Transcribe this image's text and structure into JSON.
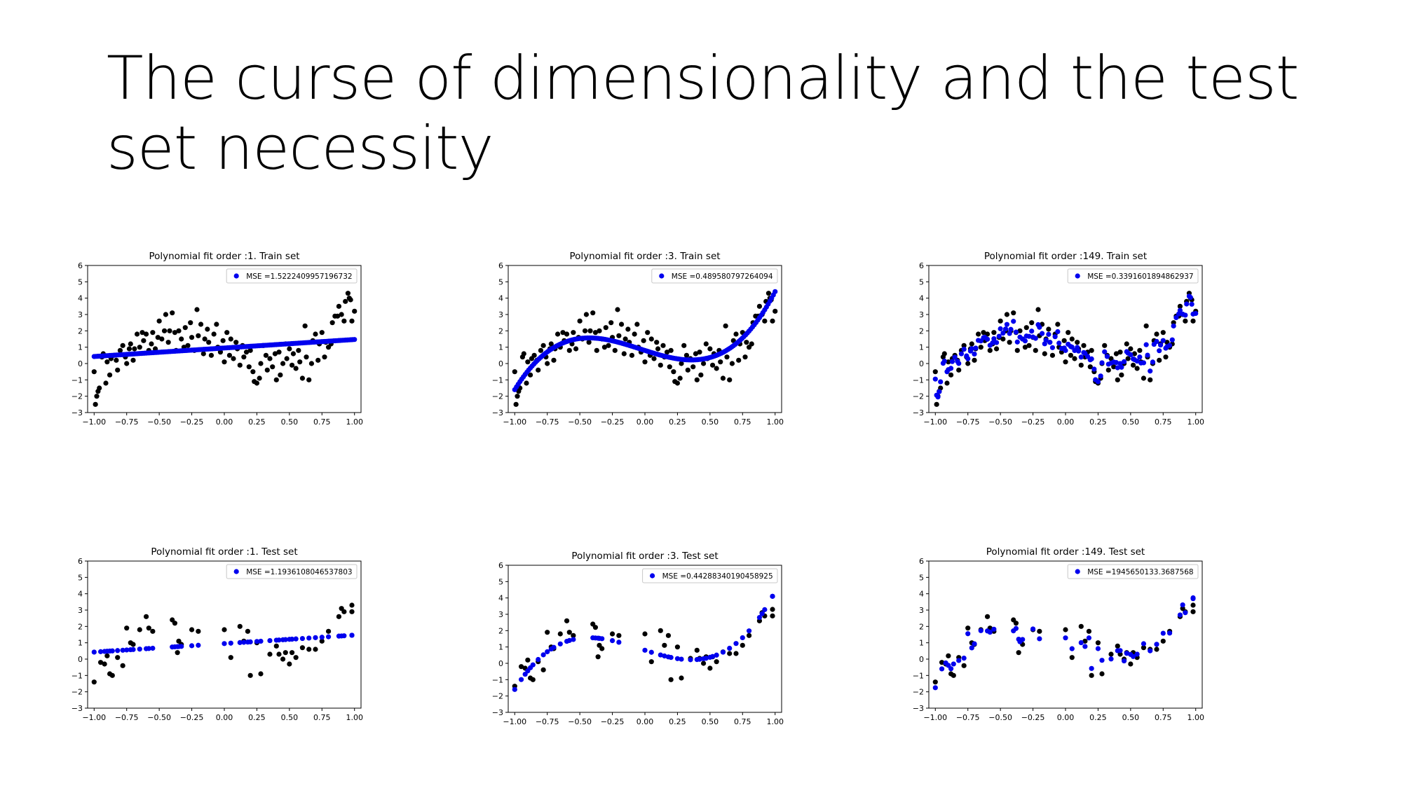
{
  "slide": {
    "title": "The curse of dimensionality and the test set necessity"
  },
  "chart_data": [
    {
      "type": "scatter",
      "title": "Polynomial fit order :1. Train set",
      "legend": "MSE =1.5222409957196732",
      "legend_position": "upper-right",
      "xlim": [
        -1.05,
        1.05
      ],
      "ylim": [
        -3,
        6
      ],
      "xticks": [
        "−1.00",
        "−0.75",
        "−0.50",
        "−0.25",
        "0.00",
        "0.25",
        "0.50",
        "0.75",
        "1.00"
      ],
      "yticks": [
        "−3",
        "−2",
        "−1",
        "0",
        "1",
        "2",
        "3",
        "4",
        "5",
        "6"
      ],
      "data_series": {
        "name": "data",
        "color": "#000000",
        "points": "train"
      },
      "fit_series": {
        "color": "#0000ee",
        "dense": true,
        "model": {
          "order": 1,
          "coefficients": [
            0.95,
            0.52
          ]
        }
      }
    },
    {
      "type": "scatter",
      "title": "Polynomial fit order :3. Train set",
      "legend": "MSE =0.489580797264094",
      "legend_position": "upper-right",
      "xlim": [
        -1.05,
        1.05
      ],
      "ylim": [
        -3,
        6
      ],
      "xticks": [
        "−1.00",
        "−0.75",
        "−0.50",
        "−0.25",
        "0.00",
        "0.25",
        "0.50",
        "0.75",
        "1.00"
      ],
      "yticks": [
        "−3",
        "−2",
        "−1",
        "0",
        "1",
        "2",
        "3",
        "4",
        "5",
        "6"
      ],
      "data_series": {
        "name": "data",
        "color": "#000000",
        "points": "train"
      },
      "fit_series": {
        "color": "#0000ee",
        "dense": true,
        "model": {
          "order": 3,
          "coefficients": [
            0.8,
            -2.55,
            0.6,
            5.55
          ]
        }
      }
    },
    {
      "type": "scatter",
      "title": "Polynomial fit order :149. Train set",
      "legend": "MSE =0.3391601894862937",
      "legend_position": "upper-right",
      "xlim": [
        -1.05,
        1.05
      ],
      "ylim": [
        -3,
        6
      ],
      "xticks": [
        "−1.00",
        "−0.75",
        "−0.50",
        "−0.25",
        "0.00",
        "0.25",
        "0.50",
        "0.75",
        "1.00"
      ],
      "yticks": [
        "−3",
        "−2",
        "−1",
        "0",
        "1",
        "2",
        "3",
        "4",
        "5",
        "6"
      ],
      "data_series": {
        "name": "data",
        "color": "#000000",
        "points": "train"
      },
      "fit_series": {
        "color": "#0000ee",
        "dense": false,
        "mode": "overfit",
        "points": "train"
      }
    },
    {
      "type": "scatter",
      "title": "Polynomial fit order :1. Test set",
      "legend": "MSE =1.1936108046537803",
      "legend_position": "upper-right",
      "xlim": [
        -1.05,
        1.05
      ],
      "ylim": [
        -3,
        6
      ],
      "xticks": [
        "−1.00",
        "−0.75",
        "−0.50",
        "−0.25",
        "0.00",
        "0.25",
        "0.50",
        "0.75",
        "1.00"
      ],
      "yticks": [
        "−3",
        "−2",
        "−1",
        "0",
        "1",
        "2",
        "3",
        "4",
        "5",
        "6"
      ],
      "data_series": {
        "name": "data",
        "color": "#000000",
        "points": "test"
      },
      "fit_series": {
        "color": "#0000ee",
        "dense": false,
        "points": "test",
        "model": {
          "order": 1,
          "coefficients": [
            0.95,
            0.52
          ]
        }
      }
    },
    {
      "type": "scatter",
      "title": "Polynomial fit order :3. Test set",
      "legend": "MSE =0.44288340190458925",
      "legend_position": "upper-right",
      "xlim": [
        -1.05,
        1.05
      ],
      "ylim": [
        -3,
        6
      ],
      "xticks": [
        "−1.00",
        "−0.75",
        "−0.50",
        "−0.25",
        "0.00",
        "0.25",
        "0.50",
        "0.75",
        "1.00"
      ],
      "yticks": [
        "−3",
        "−2",
        "−1",
        "0",
        "1",
        "2",
        "3",
        "4",
        "5",
        "6"
      ],
      "data_series": {
        "name": "data",
        "color": "#000000",
        "points": "test"
      },
      "fit_series": {
        "color": "#0000ee",
        "dense": false,
        "points": "test",
        "model": {
          "order": 3,
          "coefficients": [
            0.8,
            -2.55,
            0.6,
            5.55
          ]
        }
      }
    },
    {
      "type": "scatter",
      "title": "Polynomial fit order :149. Test set",
      "legend": "MSE =1945650133.3687568",
      "legend_position": "upper-right",
      "xlim": [
        -1.05,
        1.05
      ],
      "ylim": [
        -3,
        6
      ],
      "xticks": [
        "−1.00",
        "−0.75",
        "−0.50",
        "−0.25",
        "0.00",
        "0.25",
        "0.50",
        "0.75",
        "1.00"
      ],
      "yticks": [
        "−3",
        "−2",
        "−1",
        "0",
        "1",
        "2",
        "3",
        "4",
        "5",
        "6"
      ],
      "data_series": {
        "name": "data",
        "color": "#000000",
        "points": "test"
      },
      "fit_series": {
        "color": "#0000ee",
        "dense": false,
        "mode": "jitter",
        "points": "test"
      }
    }
  ],
  "datasets": {
    "train": [
      [
        -1.0,
        -0.5
      ],
      [
        -0.99,
        -2.5
      ],
      [
        -0.98,
        -2.0
      ],
      [
        -0.97,
        -1.7
      ],
      [
        -0.96,
        -1.5
      ],
      [
        -0.94,
        0.4
      ],
      [
        -0.93,
        0.6
      ],
      [
        -0.91,
        -1.2
      ],
      [
        -0.9,
        0.1
      ],
      [
        -0.88,
        -0.7
      ],
      [
        -0.87,
        0.3
      ],
      [
        -0.85,
        0.5
      ],
      [
        -0.83,
        0.2
      ],
      [
        -0.82,
        -0.4
      ],
      [
        -0.8,
        0.8
      ],
      [
        -0.78,
        1.1
      ],
      [
        -0.76,
        0.4
      ],
      [
        -0.75,
        0.0
      ],
      [
        -0.73,
        0.9
      ],
      [
        -0.72,
        1.2
      ],
      [
        -0.7,
        0.2
      ],
      [
        -0.69,
        0.9
      ],
      [
        -0.67,
        1.8
      ],
      [
        -0.65,
        1.0
      ],
      [
        -0.63,
        1.9
      ],
      [
        -0.62,
        1.4
      ],
      [
        -0.6,
        1.8
      ],
      [
        -0.58,
        0.8
      ],
      [
        -0.56,
        1.2
      ],
      [
        -0.55,
        1.9
      ],
      [
        -0.53,
        0.9
      ],
      [
        -0.51,
        1.6
      ],
      [
        -0.5,
        2.6
      ],
      [
        -0.48,
        1.5
      ],
      [
        -0.46,
        2.0
      ],
      [
        -0.45,
        3.0
      ],
      [
        -0.43,
        1.3
      ],
      [
        -0.42,
        2.0
      ],
      [
        -0.4,
        3.1
      ],
      [
        -0.38,
        1.9
      ],
      [
        -0.37,
        0.8
      ],
      [
        -0.35,
        2.0
      ],
      [
        -0.33,
        1.5
      ],
      [
        -0.31,
        1.0
      ],
      [
        -0.3,
        2.2
      ],
      [
        -0.28,
        1.1
      ],
      [
        -0.26,
        2.5
      ],
      [
        -0.25,
        1.6
      ],
      [
        -0.23,
        0.8
      ],
      [
        -0.21,
        3.3
      ],
      [
        -0.2,
        1.7
      ],
      [
        -0.18,
        2.4
      ],
      [
        -0.16,
        0.6
      ],
      [
        -0.15,
        1.5
      ],
      [
        -0.13,
        2.1
      ],
      [
        -0.12,
        1.3
      ],
      [
        -0.1,
        0.5
      ],
      [
        -0.08,
        1.8
      ],
      [
        -0.06,
        2.4
      ],
      [
        -0.05,
        1.0
      ],
      [
        -0.03,
        0.7
      ],
      [
        -0.01,
        1.4
      ],
      [
        0.0,
        0.1
      ],
      [
        0.02,
        1.9
      ],
      [
        0.04,
        0.5
      ],
      [
        0.05,
        1.5
      ],
      [
        0.07,
        0.3
      ],
      [
        0.09,
        1.3
      ],
      [
        0.1,
        0.9
      ],
      [
        0.12,
        -0.1
      ],
      [
        0.14,
        1.1
      ],
      [
        0.15,
        0.4
      ],
      [
        0.17,
        0.7
      ],
      [
        0.19,
        -0.2
      ],
      [
        0.2,
        0.8
      ],
      [
        0.22,
        -0.5
      ],
      [
        0.23,
        -1.1
      ],
      [
        0.25,
        -1.2
      ],
      [
        0.27,
        -0.9
      ],
      [
        0.28,
        0.0
      ],
      [
        0.3,
        1.1
      ],
      [
        0.32,
        0.5
      ],
      [
        0.33,
        -0.4
      ],
      [
        0.35,
        0.3
      ],
      [
        0.37,
        -0.2
      ],
      [
        0.39,
        0.6
      ],
      [
        0.4,
        -1.0
      ],
      [
        0.42,
        0.7
      ],
      [
        0.43,
        -0.7
      ],
      [
        0.45,
        0.0
      ],
      [
        0.47,
        1.2
      ],
      [
        0.48,
        0.3
      ],
      [
        0.5,
        0.9
      ],
      [
        0.52,
        -0.1
      ],
      [
        0.53,
        0.6
      ],
      [
        0.55,
        -0.3
      ],
      [
        0.57,
        0.8
      ],
      [
        0.58,
        0.1
      ],
      [
        0.6,
        -0.9
      ],
      [
        0.62,
        2.3
      ],
      [
        0.63,
        0.4
      ],
      [
        0.65,
        -1.0
      ],
      [
        0.67,
        0.0
      ],
      [
        0.68,
        1.4
      ],
      [
        0.7,
        1.8
      ],
      [
        0.72,
        0.2
      ],
      [
        0.73,
        1.2
      ],
      [
        0.75,
        1.9
      ],
      [
        0.77,
        0.4
      ],
      [
        0.78,
        1.3
      ],
      [
        0.8,
        1.0
      ],
      [
        0.82,
        1.2
      ],
      [
        0.83,
        2.5
      ],
      [
        0.85,
        2.9
      ],
      [
        0.87,
        2.9
      ],
      [
        0.88,
        3.5
      ],
      [
        0.9,
        3.0
      ],
      [
        0.92,
        2.6
      ],
      [
        0.93,
        3.8
      ],
      [
        0.95,
        4.3
      ],
      [
        0.96,
        4.0
      ],
      [
        0.97,
        3.9
      ],
      [
        0.98,
        2.6
      ],
      [
        1.0,
        3.2
      ]
    ],
    "test": [
      [
        -1.0,
        -1.4
      ],
      [
        -0.95,
        -0.2
      ],
      [
        -0.92,
        -0.3
      ],
      [
        -0.9,
        0.2
      ],
      [
        -0.88,
        -0.9
      ],
      [
        -0.86,
        -1.0
      ],
      [
        -0.82,
        0.1
      ],
      [
        -0.78,
        -0.4
      ],
      [
        -0.75,
        1.9
      ],
      [
        -0.72,
        1.0
      ],
      [
        -0.7,
        0.9
      ],
      [
        -0.65,
        1.8
      ],
      [
        -0.6,
        2.6
      ],
      [
        -0.58,
        1.9
      ],
      [
        -0.55,
        1.7
      ],
      [
        -0.4,
        2.4
      ],
      [
        -0.38,
        2.2
      ],
      [
        -0.36,
        0.4
      ],
      [
        -0.35,
        1.1
      ],
      [
        -0.33,
        0.9
      ],
      [
        -0.25,
        1.8
      ],
      [
        -0.2,
        1.7
      ],
      [
        0.0,
        1.8
      ],
      [
        0.05,
        0.1
      ],
      [
        0.12,
        2.0
      ],
      [
        0.15,
        1.1
      ],
      [
        0.18,
        1.7
      ],
      [
        0.2,
        -1.0
      ],
      [
        0.25,
        1.0
      ],
      [
        0.28,
        -0.9
      ],
      [
        0.35,
        0.3
      ],
      [
        0.4,
        0.8
      ],
      [
        0.42,
        0.3
      ],
      [
        0.45,
        0.0
      ],
      [
        0.47,
        0.4
      ],
      [
        0.5,
        -0.3
      ],
      [
        0.52,
        0.4
      ],
      [
        0.55,
        0.1
      ],
      [
        0.6,
        0.7
      ],
      [
        0.65,
        0.6
      ],
      [
        0.7,
        0.6
      ],
      [
        0.75,
        1.1
      ],
      [
        0.8,
        1.7
      ],
      [
        0.88,
        2.6
      ],
      [
        0.9,
        3.1
      ],
      [
        0.92,
        2.9
      ],
      [
        0.98,
        3.3
      ],
      [
        0.98,
        2.9
      ]
    ]
  }
}
